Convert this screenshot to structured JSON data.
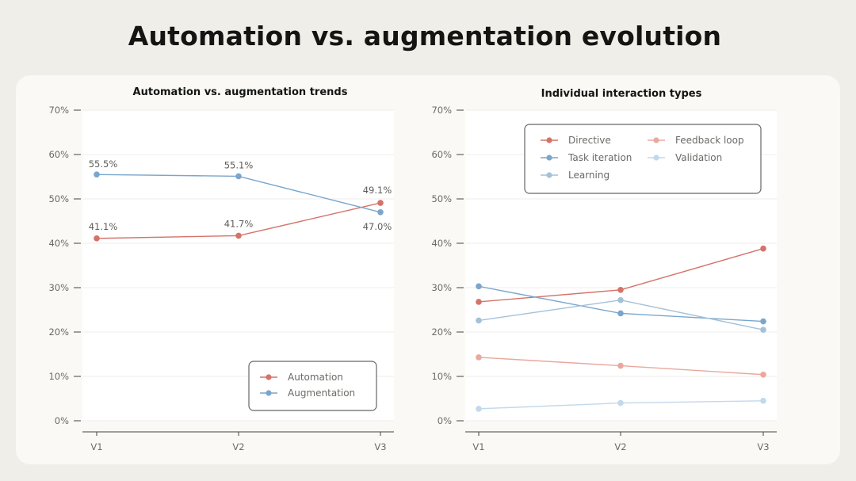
{
  "title": "Automation vs. augmentation evolution",
  "colors": {
    "automation": "#d4736a",
    "augmentation": "#7aa6cc",
    "directive": "#d4736a",
    "feedback_loop": "#e9a89e",
    "task_iteration": "#7aa6cc",
    "validation": "#c2d8eb",
    "learning": "#a4c1da",
    "grid": "#efeeea",
    "axis": "#444444"
  },
  "chart_data": [
    {
      "type": "line",
      "title": "Automation vs. augmentation trends",
      "categories": [
        "V1",
        "V2",
        "V3"
      ],
      "yticks": [
        "0%",
        "10%",
        "20%",
        "30%",
        "40%",
        "50%",
        "60%",
        "70%"
      ],
      "ylim": [
        0,
        70
      ],
      "grid": true,
      "legend": "bottom-right",
      "series": [
        {
          "name": "Automation",
          "values": [
            41.1,
            41.7,
            49.1
          ],
          "labels": [
            "41.1%",
            "41.7%",
            "49.1%"
          ]
        },
        {
          "name": "Augmentation",
          "values": [
            55.5,
            55.1,
            47.0
          ],
          "labels": [
            "55.5%",
            "55.1%",
            "47.0%"
          ]
        }
      ]
    },
    {
      "type": "line",
      "title": "Individual interaction types",
      "categories": [
        "V1",
        "V2",
        "V3"
      ],
      "yticks": [
        "0%",
        "10%",
        "20%",
        "30%",
        "40%",
        "50%",
        "60%",
        "70%"
      ],
      "ylim": [
        0,
        70
      ],
      "grid": true,
      "legend": "top",
      "series": [
        {
          "name": "Directive",
          "values": [
            26.8,
            29.5,
            38.8
          ]
        },
        {
          "name": "Feedback loop",
          "values": [
            14.3,
            12.4,
            10.4
          ]
        },
        {
          "name": "Task iteration",
          "values": [
            30.3,
            24.2,
            22.4
          ]
        },
        {
          "name": "Validation",
          "values": [
            2.7,
            4.0,
            4.5
          ]
        },
        {
          "name": "Learning",
          "values": [
            22.6,
            27.2,
            20.5
          ]
        }
      ]
    }
  ]
}
